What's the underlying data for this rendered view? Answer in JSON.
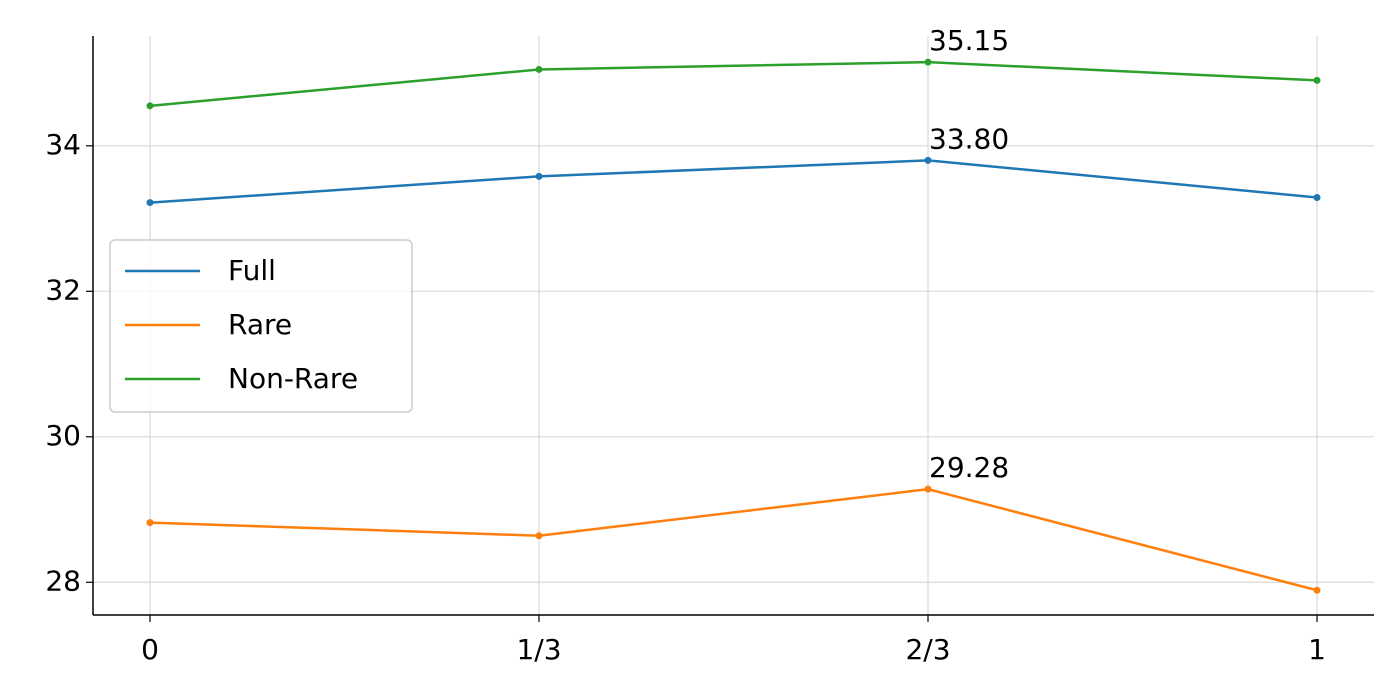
{
  "chart_data": {
    "type": "line",
    "categories": [
      "0",
      "1/3",
      "2/3",
      "1"
    ],
    "series": [
      {
        "name": "Full",
        "color": "#1f77b4",
        "values": [
          33.22,
          33.58,
          33.8,
          33.29
        ],
        "value_labels": [
          null,
          null,
          "33.80",
          null
        ]
      },
      {
        "name": "Rare",
        "color": "#ff7f0e",
        "values": [
          28.82,
          28.64,
          29.28,
          27.89
        ],
        "value_labels": [
          null,
          null,
          "29.28",
          null
        ]
      },
      {
        "name": "Non-Rare",
        "color": "#2ca02c",
        "values": [
          34.55,
          35.05,
          35.15,
          34.9
        ],
        "value_labels": [
          null,
          null,
          "35.15",
          null
        ]
      }
    ],
    "ylim": [
      27.55,
      35.51
    ],
    "yticks": [
      28,
      30,
      32,
      34
    ],
    "grid": true,
    "legend": "center left"
  }
}
